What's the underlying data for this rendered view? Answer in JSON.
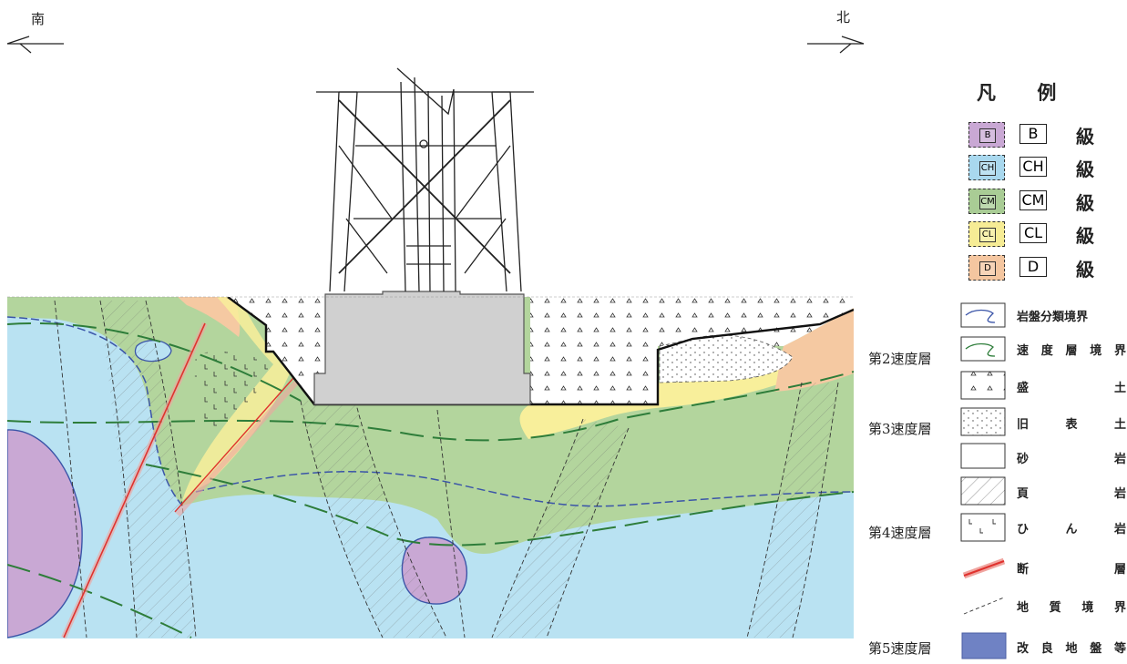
{
  "compass": {
    "south": "南",
    "north": "北"
  },
  "legend": {
    "title_chars": [
      "凡",
      "例"
    ],
    "grades": [
      {
        "code": "B",
        "swatch_text": "B",
        "kyu": "級",
        "color": "#c9a8d4"
      },
      {
        "code": "CH",
        "swatch_text": "CH",
        "kyu": "級",
        "color": "#a9d8ee"
      },
      {
        "code": "CM",
        "swatch_text": "CM",
        "kyu": "級",
        "color": "#a9cc95"
      },
      {
        "code": "CL",
        "swatch_text": "CL",
        "kyu": "級",
        "color": "#f6ec95"
      },
      {
        "code": "D",
        "swatch_text": "D",
        "kyu": "級",
        "color": "#f4c6a0"
      }
    ],
    "symbols": [
      {
        "label_chars": [
          "岩",
          "盤",
          "分",
          "類",
          "境",
          "界"
        ],
        "icon": "rock-classification-boundary-icon"
      },
      {
        "label_chars": [
          "速",
          "度",
          "層",
          "境",
          "界"
        ],
        "icon": "velocity-layer-boundary-icon"
      },
      {
        "label_chars": [
          "盛",
          "土"
        ],
        "icon": "embankment-icon"
      },
      {
        "label_chars": [
          "旧",
          "表",
          "土"
        ],
        "icon": "old-topsoil-icon"
      },
      {
        "label_chars": [
          "砂",
          "岩"
        ],
        "icon": "sandstone-icon"
      },
      {
        "label_chars": [
          "頁",
          "岩"
        ],
        "icon": "shale-icon"
      },
      {
        "label_chars": [
          "ひ",
          "ん",
          "岩"
        ],
        "icon": "hinrock-icon"
      },
      {
        "label_chars": [
          "断",
          "層"
        ],
        "icon": "fault-icon"
      },
      {
        "label_chars": [
          "地",
          "質",
          "境",
          "界"
        ],
        "icon": "geologic-boundary-icon"
      },
      {
        "label_chars": [
          "改",
          "良",
          "地",
          "盤",
          "等"
        ],
        "icon": "improved-ground-icon"
      }
    ]
  },
  "velocity_layers": [
    "第2速度層",
    "第3速度層",
    "第4速度層",
    "第5速度層"
  ],
  "colors": {
    "B": "#c9a8d4",
    "CH": "#b9e2f2",
    "CM": "#b3d59d",
    "CL": "#f8ef9b",
    "D": "#f5c9a2",
    "fault": "#e0322e",
    "velocity_line": "#2e7d3a",
    "class_line": "#3b55a8",
    "improved": "#6f82c4"
  }
}
